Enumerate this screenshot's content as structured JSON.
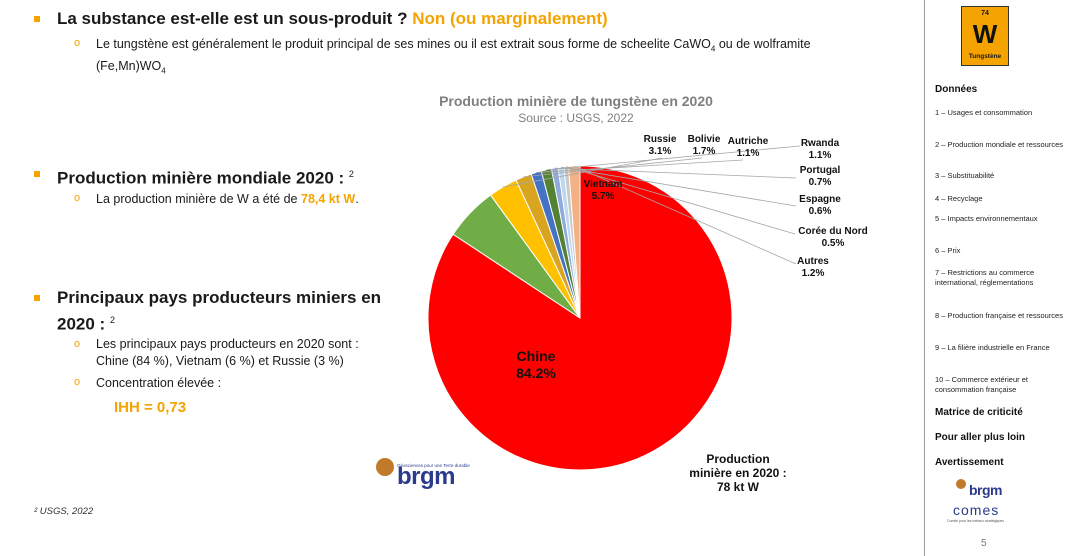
{
  "section1": {
    "title_prefix": "La substance est-elle est un sous-produit ?",
    "title_answer": "Non (ou marginalement)",
    "text_a": "Le tungstène est généralement le produit principal de ses mines ou il est extrait sous forme de scheelite CaWO",
    "sub_4a": "4",
    "text_b": " ou de wolframite",
    "text_c": "(Fe,Mn)WO",
    "sub_4b": "4"
  },
  "section2": {
    "title": "Production minière mondiale 2020 :",
    "ref": "2",
    "text_prefix": "La production minière de W a été de",
    "value": "78,4 kt W",
    "text_suffix": "."
  },
  "section3": {
    "title_line1": "Principaux pays producteurs miniers en",
    "title_line2": "2020 :",
    "ref": "2",
    "text_line1": "Les principaux pays producteurs en 2020 sont :",
    "text_line2": "Chine (84 %), Vietnam (6 %) et Russie (3 %)",
    "concentration": "Concentration élevée :",
    "ihh": "IHH = 0,73"
  },
  "footnote": "² USGS, 2022",
  "logo": {
    "name": "brgm",
    "tagline": "Géosciences pour une Terre durable"
  },
  "sidebar": {
    "element": {
      "number": "74",
      "symbol": "W",
      "name": "Tungstène"
    },
    "heading": "Données",
    "items": [
      "1 – Usages et consommation",
      "2 – Production mondiale et ressources",
      "3 – Substituabilité",
      "4 – Recyclage",
      "5 – Impacts environnementaux",
      "6 – Prix",
      "7 – Restrictions au commerce international, réglementations",
      "8 – Production française et ressources",
      "9 – La filière industrielle en France",
      "10 – Commerce extérieur et consommation française"
    ],
    "links": [
      "Matrice de criticité",
      "Pour aller plus loin",
      "Avertissement"
    ],
    "logo_brgm": "brgm",
    "logo_comes": "comes",
    "comes_tagline": "Comité pour les métaux stratégiques",
    "page": "5"
  },
  "chart_data": {
    "type": "pie",
    "title": "Production minière de tungstène en 2020",
    "subtitle": "Source : USGS, 2022",
    "slices": [
      {
        "label": "Chine",
        "value": 84.2,
        "display": "84.2%",
        "color": "#ff0000"
      },
      {
        "label": "Vietnam",
        "value": 5.7,
        "display": "5.7%",
        "color": "#70ad47"
      },
      {
        "label": "Russie",
        "value": 3.1,
        "display": "3.1%",
        "color": "#ffc000"
      },
      {
        "label": "Bolivie",
        "value": 1.7,
        "display": "1.7%",
        "color": "#d9a520"
      },
      {
        "label": "Autriche",
        "value": 1.1,
        "display": "1.1%",
        "color": "#4472c4"
      },
      {
        "label": "Rwanda",
        "value": 1.1,
        "display": "1.1%",
        "color": "#548235"
      },
      {
        "label": "Portugal",
        "value": 0.7,
        "display": "0.7%",
        "color": "#8faadc"
      },
      {
        "label": "Espagne",
        "value": 0.6,
        "display": "0.6%",
        "color": "#bdd7ee"
      },
      {
        "label": "Corée du Nord",
        "value": 0.5,
        "display": "0.5%",
        "color": "#c9c9c9"
      },
      {
        "label": "Autres",
        "value": 1.2,
        "display": "1.2%",
        "color": "#f4b183"
      }
    ],
    "total_label": [
      "Production",
      "minière en 2020 :",
      "78 kt W"
    ]
  }
}
